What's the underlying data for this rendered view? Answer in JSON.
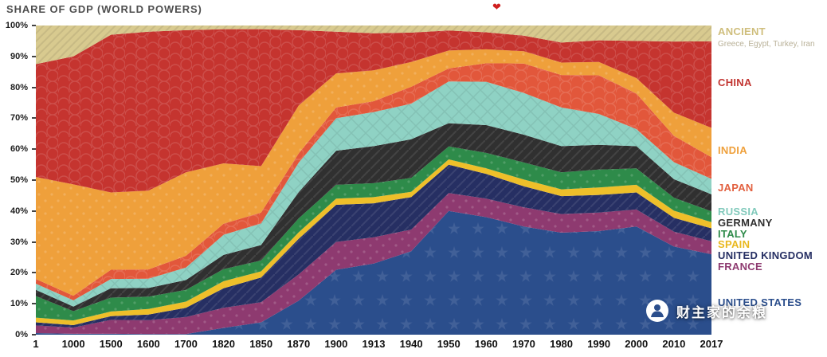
{
  "title": "SHARE OF GDP (WORLD POWERS)",
  "decoration": {
    "heart_glyph": "❤"
  },
  "watermark": {
    "text": "财主家的余粮"
  },
  "y_axis": {
    "labels": [
      "100%",
      "90%",
      "80%",
      "70%",
      "60%",
      "50%",
      "40%",
      "30%",
      "20%",
      "10%",
      "0%"
    ]
  },
  "chart_data": {
    "type": "area",
    "stacked": true,
    "normalized_to_100": true,
    "title": "SHARE OF GDP (WORLD POWERS)",
    "x_type": "category",
    "x": [
      "1",
      "1000",
      "1500",
      "1600",
      "1700",
      "1820",
      "1850",
      "1870",
      "1900",
      "1913",
      "1940",
      "1950",
      "1960",
      "1970",
      "1980",
      "1990",
      "2000",
      "2010",
      "2017"
    ],
    "ylim": [
      0,
      100
    ],
    "grid": false,
    "legend_position": "right",
    "series": [
      {
        "id": "us",
        "name": "UNITED STATES",
        "color": "#2b4e8c",
        "pattern": "stars",
        "values": [
          0.5,
          0.3,
          0.3,
          0.2,
          0.2,
          2.2,
          4,
          11,
          21,
          23,
          27,
          40,
          38,
          35,
          33,
          33.5,
          35,
          28.5,
          26
        ]
      },
      {
        "id": "france",
        "name": "FRANCE",
        "color": "#8e3a70",
        "pattern": "dots",
        "values": [
          2.5,
          2,
          4.5,
          4.5,
          5.5,
          6.5,
          6.5,
          8.5,
          9,
          8.5,
          7,
          5.8,
          6,
          6.2,
          6,
          6,
          5.5,
          4.8,
          4.2
        ]
      },
      {
        "id": "uk",
        "name": "UNITED KINGDOM",
        "color": "#262f63",
        "pattern": "hatch",
        "values": [
          1,
          0.8,
          1.2,
          1.8,
          3,
          6.3,
          8,
          11.5,
          12,
          11,
          10.5,
          9.2,
          8,
          6.8,
          5.8,
          5.7,
          5.5,
          4.5,
          4.2
        ]
      },
      {
        "id": "spain",
        "name": "SPAIN",
        "color": "#eebf2a",
        "pattern": "none",
        "values": [
          1.5,
          1.5,
          1.5,
          1.8,
          2,
          2.3,
          2,
          2.1,
          2,
          2,
          1.7,
          1.7,
          1.8,
          2.2,
          2.2,
          2.4,
          2.5,
          2.3,
          2
        ]
      },
      {
        "id": "italy",
        "name": "ITALY",
        "color": "#2e8b4a",
        "pattern": "dots",
        "values": [
          7,
          3,
          4.5,
          4,
          3.8,
          3.9,
          3.5,
          4.5,
          4.5,
          4.5,
          4.5,
          4.2,
          5,
          5.5,
          5.5,
          5.8,
          5.3,
          4.2,
          3.5
        ]
      },
      {
        "id": "germany",
        "name": "GERMANY",
        "color": "#303030",
        "pattern": "hatch",
        "values": [
          2,
          1.5,
          3,
          2.8,
          3.2,
          4.6,
          5,
          8.5,
          11,
          12,
          12.5,
          7.5,
          9,
          9,
          8.5,
          8,
          7.2,
          6,
          5.5
        ]
      },
      {
        "id": "russia",
        "name": "RUSSIA",
        "color": "#8fd2c4",
        "pattern": "diamond-dark",
        "values": [
          2,
          2,
          3,
          3,
          4,
          6.5,
          7,
          9.5,
          10.5,
          11,
          11.5,
          13.5,
          14,
          13.5,
          12.5,
          10,
          5.5,
          5.5,
          5
        ]
      },
      {
        "id": "japan",
        "name": "JAPAN",
        "color": "#e2573b",
        "pattern": "scales",
        "values": [
          1.5,
          1.5,
          3,
          3,
          3.8,
          3.6,
          3.5,
          3,
          3.5,
          3.5,
          5.5,
          4.2,
          6,
          9.5,
          10.5,
          12.5,
          11.5,
          8.5,
          7
        ]
      },
      {
        "id": "india",
        "name": "INDIA",
        "color": "#efa03b",
        "pattern": "dots",
        "values": [
          33,
          36,
          25,
          25.5,
          27,
          19.5,
          15,
          15.5,
          11,
          10,
          8,
          5.8,
          4.5,
          4,
          4,
          4.3,
          5,
          7.5,
          9.5
        ]
      },
      {
        "id": "china",
        "name": "CHINA",
        "color": "#c5342f",
        "pattern": "scales",
        "values": [
          36.5,
          41.4,
          51,
          51.4,
          46,
          43.4,
          44.3,
          24.4,
          13.5,
          12,
          9.5,
          6.5,
          5.5,
          5,
          6.5,
          7,
          12,
          23,
          28
        ]
      },
      {
        "id": "ancient",
        "name": "ANCIENT",
        "color": "#d8ca8f",
        "pattern": "hatch-dark",
        "values": [
          12.5,
          10,
          3,
          2,
          1.5,
          1.2,
          1.2,
          1.5,
          2,
          2.5,
          2.3,
          1.6,
          2.2,
          3.3,
          5.5,
          4.8,
          5,
          5.2,
          5.1
        ]
      }
    ]
  },
  "legend": {
    "items": [
      {
        "label": "ANCIENT",
        "color": "#cfbe7c",
        "sublabel": "Greece, Egypt, Turkey, Iran",
        "sub_color": "#b8b097"
      },
      {
        "label": "CHINA",
        "color": "#c23531"
      },
      {
        "label": "INDIA",
        "color": "#efa03b"
      },
      {
        "label": "JAPAN",
        "color": "#e2603f"
      },
      {
        "label": "RUSSIA",
        "color": "#82cabc"
      },
      {
        "label": "GERMANY",
        "color": "#303030"
      },
      {
        "label": "ITALY",
        "color": "#2e8b4a"
      },
      {
        "label": "SPAIN",
        "color": "#e9b81e"
      },
      {
        "label": "UNITED KINGDOM",
        "color": "#262f63"
      },
      {
        "label": "FRANCE",
        "color": "#8e3a70"
      },
      {
        "label": "UNITED STATES",
        "color": "#2b4e8c"
      }
    ]
  }
}
